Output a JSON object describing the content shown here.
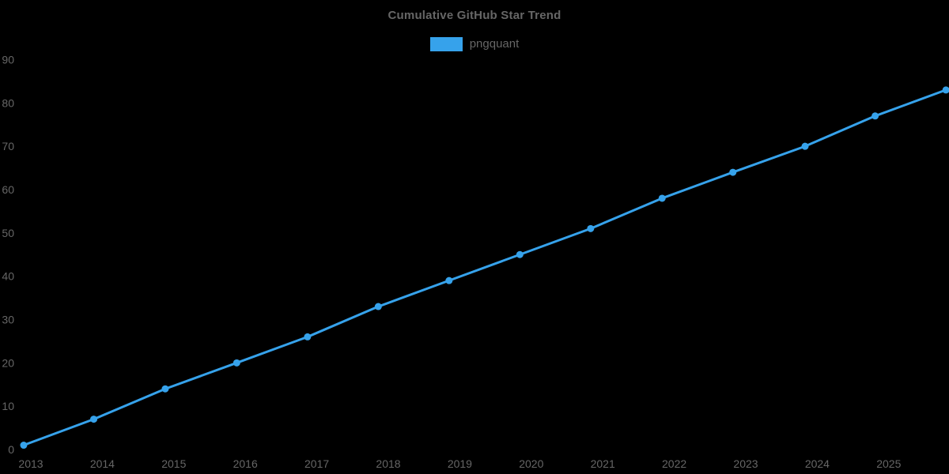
{
  "title": "Cumulative GitHub Star Trend",
  "legend": [
    {
      "label": "pngquant",
      "color": "#36A2EB"
    }
  ],
  "colors": {
    "background": "#000000",
    "title_text": "#666666",
    "tick_text": "#666666",
    "accent_blue": "#36A2EB"
  },
  "chart_data": {
    "type": "line",
    "title": "Cumulative GitHub Star Trend",
    "xlabel": "",
    "ylabel": "",
    "grid": false,
    "legend_position": "top",
    "background": "#000000",
    "x_ticks": [
      2013,
      2014,
      2015,
      2016,
      2017,
      2018,
      2019,
      2020,
      2021,
      2022,
      2023,
      2024,
      2025
    ],
    "y_ticks": [
      0,
      10,
      20,
      30,
      40,
      50,
      60,
      70,
      80,
      90
    ],
    "xlim": [
      2012.57,
      2025.84
    ],
    "ylim": [
      0,
      90
    ],
    "line_width": 3,
    "point_radius": 4.5,
    "series": [
      {
        "name": "pngquant",
        "color": "#36A2EB",
        "x": [
          2012.9,
          2013.88,
          2014.88,
          2015.88,
          2016.87,
          2017.86,
          2018.85,
          2019.84,
          2020.83,
          2021.83,
          2022.82,
          2023.83,
          2024.81,
          2025.8
        ],
        "values": [
          1,
          7,
          14,
          20,
          26,
          33,
          39,
          45,
          51,
          58,
          64,
          70,
          77,
          83
        ]
      }
    ]
  }
}
